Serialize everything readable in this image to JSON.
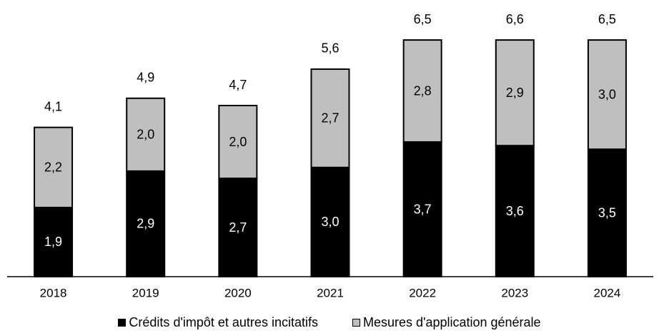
{
  "chart_data": {
    "type": "bar",
    "stacked": true,
    "categories": [
      "2018",
      "2019",
      "2020",
      "2021",
      "2022",
      "2023",
      "2024"
    ],
    "series": [
      {
        "name": "Crédits d'impôt et autres incitatifs",
        "values": [
          1.9,
          2.9,
          2.7,
          3.0,
          3.7,
          3.6,
          3.5
        ],
        "labels": [
          "1,9",
          "2,9",
          "2,7",
          "3,0",
          "3,7",
          "3,6",
          "3,5"
        ],
        "color": "#000000"
      },
      {
        "name": "Mesures d'application générale",
        "values": [
          2.2,
          2.0,
          2.0,
          2.7,
          2.8,
          2.9,
          3.0
        ],
        "labels": [
          "2,2",
          "2,0",
          "2,0",
          "2,7",
          "2,8",
          "2,9",
          "3,0"
        ],
        "color": "#bfbfbf"
      }
    ],
    "totals": [
      4.1,
      4.9,
      4.7,
      5.6,
      6.5,
      6.6,
      6.5
    ],
    "total_labels": [
      "4,1",
      "4,9",
      "4,7",
      "5,6",
      "6,5",
      "6,6",
      "6,5"
    ],
    "title": "",
    "xlabel": "",
    "ylabel": "",
    "ylim": [
      0,
      6.6
    ],
    "grid": false,
    "legend_position": "bottom"
  }
}
